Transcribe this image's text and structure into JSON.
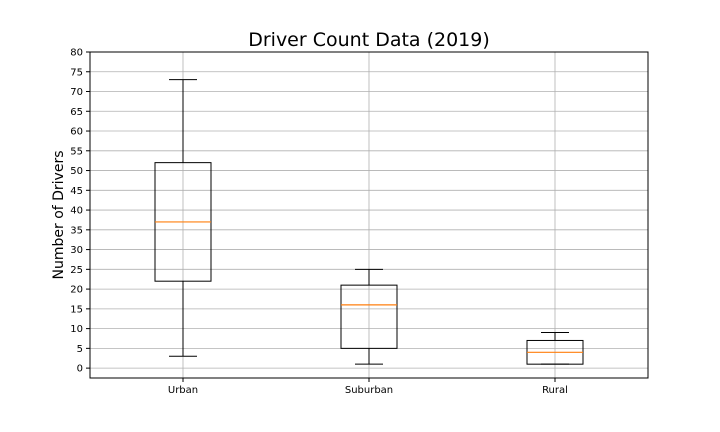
{
  "chart_data": {
    "type": "boxplot",
    "title": "Driver Count Data (2019)",
    "xlabel": "",
    "ylabel": "Number of Drivers",
    "categories": [
      "Urban",
      "Suburban",
      "Rural"
    ],
    "boxes": [
      {
        "whisker_low": 3,
        "q1": 22,
        "median": 37,
        "q3": 52,
        "whisker_high": 73
      },
      {
        "whisker_low": 1,
        "q1": 5,
        "median": 16,
        "q3": 21,
        "whisker_high": 25
      },
      {
        "whisker_low": 1,
        "q1": 1,
        "median": 4,
        "q3": 7,
        "whisker_high": 9
      }
    ],
    "yticks": [
      0,
      5,
      10,
      15,
      20,
      25,
      30,
      35,
      40,
      45,
      50,
      55,
      60,
      65,
      70,
      75,
      80
    ],
    "ylim": [
      -2.5,
      80
    ],
    "grid": true,
    "colors": {
      "box": "#000000",
      "median": "#ff7f0e",
      "grid": "#b0b0b0"
    }
  }
}
